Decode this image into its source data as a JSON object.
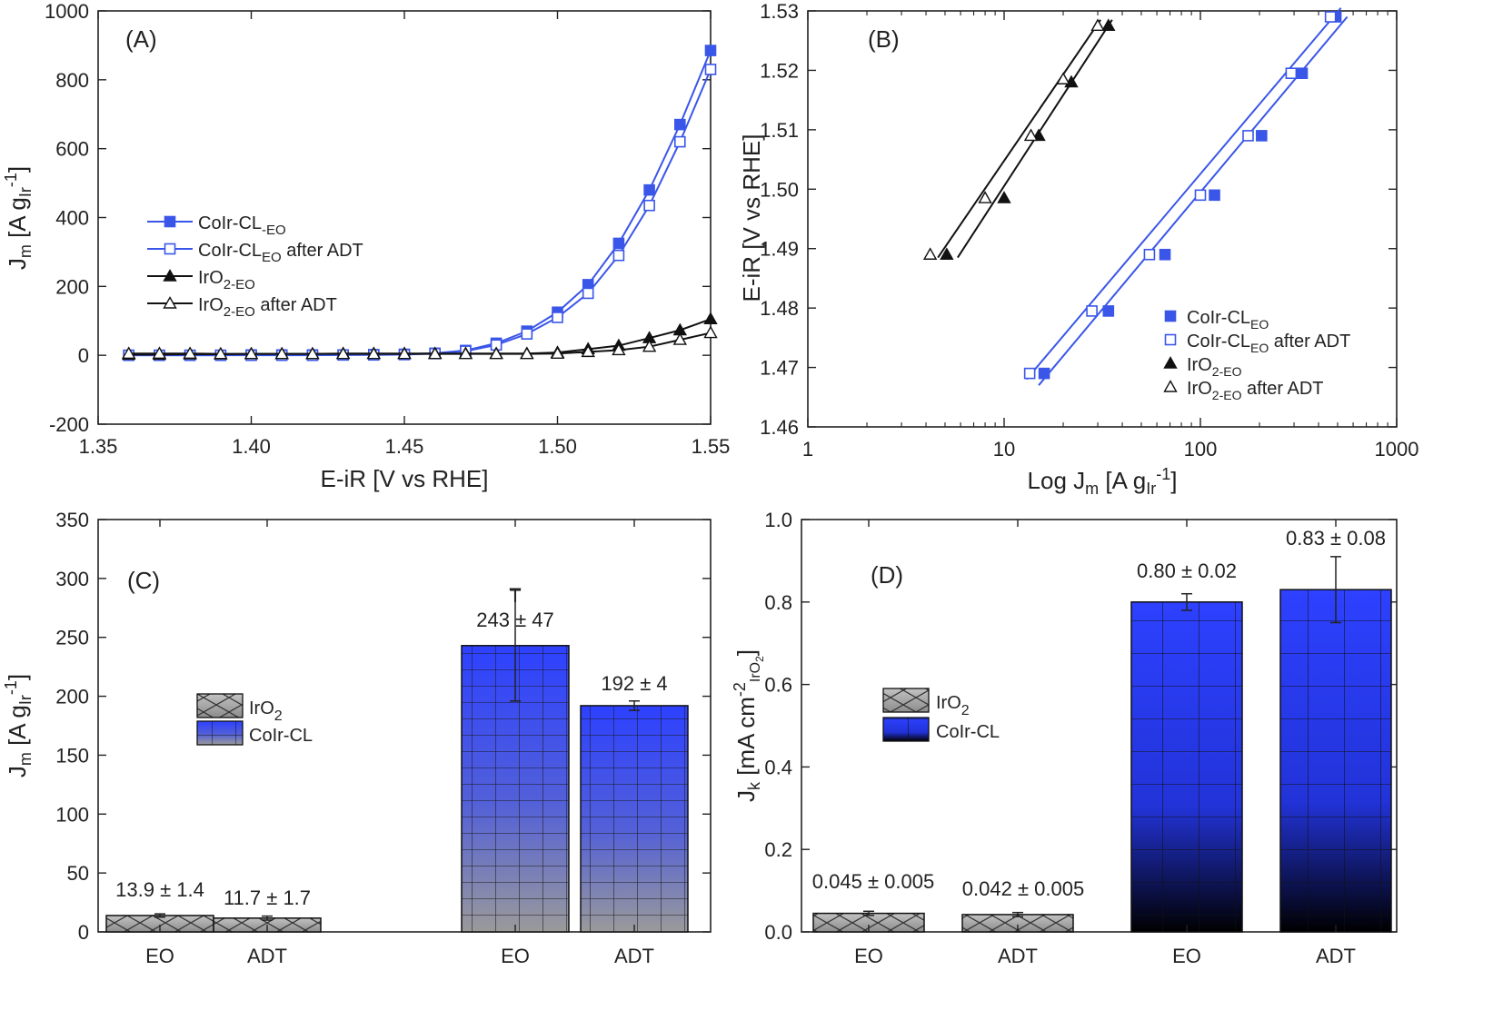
{
  "figure": {
    "panels": [
      {
        "key": "A",
        "label": "(A)"
      },
      {
        "key": "B",
        "label": "(B)"
      },
      {
        "key": "C",
        "label": "(C)"
      },
      {
        "key": "D",
        "label": "(D)"
      }
    ]
  },
  "colors": {
    "blue": "#3a56e8",
    "black": "#111111",
    "bar_gray": "#b8b8b8",
    "bar_blue_top": "#2f43ff",
    "bar_blue_bottom": "#8f9399"
  },
  "chart_data": [
    {
      "panel": "A",
      "type": "line",
      "xlabel": "E-iR [V vs RHE]",
      "ylabel": "J_m [A g_Ir^-1]",
      "xlim": [
        1.35,
        1.55
      ],
      "ylim": [
        -200,
        1000
      ],
      "xticks": [
        1.35,
        1.4,
        1.45,
        1.5,
        1.55
      ],
      "xtick_labels": [
        "1.35",
        "1.40",
        "1.45",
        "1.50",
        "1.55"
      ],
      "yticks": [
        -200,
        0,
        200,
        400,
        600,
        800,
        1000
      ],
      "ytick_labels": [
        "-200",
        "0",
        "200",
        "400",
        "600",
        "800",
        "1000"
      ],
      "legend_position": "middle-left",
      "series": [
        {
          "name": "CoIr-CL",
          "name_sub": "-EO",
          "name_suffix": "",
          "color": "blue",
          "marker": "square-filled",
          "x": [
            1.36,
            1.37,
            1.38,
            1.39,
            1.4,
            1.41,
            1.42,
            1.43,
            1.44,
            1.45,
            1.46,
            1.47,
            1.48,
            1.49,
            1.5,
            1.51,
            1.52,
            1.53,
            1.54,
            1.55
          ],
          "y": [
            0,
            0,
            0,
            0,
            1,
            1,
            1,
            1,
            2,
            3,
            6,
            14,
            35,
            70,
            125,
            205,
            325,
            480,
            670,
            885
          ]
        },
        {
          "name": "CoIr-CL",
          "name_sub": "EO",
          "name_suffix": " after ADT",
          "color": "blue",
          "marker": "square-open",
          "x": [
            1.36,
            1.37,
            1.38,
            1.39,
            1.4,
            1.41,
            1.42,
            1.43,
            1.44,
            1.45,
            1.46,
            1.47,
            1.48,
            1.49,
            1.5,
            1.51,
            1.52,
            1.53,
            1.54,
            1.55
          ],
          "y": [
            0,
            0,
            0,
            0,
            0,
            0,
            0,
            1,
            1,
            2,
            5,
            12,
            30,
            62,
            110,
            180,
            290,
            435,
            620,
            830
          ]
        },
        {
          "name": "IrO",
          "name_sub": "2-EO",
          "name_suffix": "",
          "color": "black",
          "marker": "triangle-filled",
          "x": [
            1.36,
            1.37,
            1.38,
            1.39,
            1.4,
            1.41,
            1.42,
            1.43,
            1.44,
            1.45,
            1.46,
            1.47,
            1.48,
            1.49,
            1.5,
            1.51,
            1.52,
            1.53,
            1.54,
            1.55
          ],
          "y": [
            2,
            2,
            3,
            3,
            4,
            4,
            4,
            5,
            5,
            5,
            5,
            5,
            5,
            5,
            8,
            18,
            28,
            50,
            73,
            105
          ]
        },
        {
          "name": "IrO",
          "name_sub": "2-EO",
          "name_suffix": " after ADT",
          "color": "black",
          "marker": "triangle-open",
          "x": [
            1.36,
            1.37,
            1.38,
            1.39,
            1.4,
            1.41,
            1.42,
            1.43,
            1.44,
            1.45,
            1.46,
            1.47,
            1.48,
            1.49,
            1.5,
            1.51,
            1.52,
            1.53,
            1.54,
            1.55
          ],
          "y": [
            5,
            5,
            5,
            4,
            4,
            4,
            4,
            4,
            4,
            4,
            4,
            4,
            4,
            4,
            5,
            10,
            15,
            25,
            45,
            65
          ]
        }
      ]
    },
    {
      "panel": "B",
      "type": "scatter",
      "xlabel": "Log J_m [A g_Ir^-1]",
      "ylabel": "E-iR [V vs RHE]",
      "xscale": "log",
      "xlim": [
        1,
        1000
      ],
      "ylim": [
        1.46,
        1.53
      ],
      "xticks": [
        1,
        10,
        100,
        1000
      ],
      "xtick_labels": [
        "1",
        "10",
        "100",
        "1000"
      ],
      "yticks": [
        1.46,
        1.47,
        1.48,
        1.49,
        1.5,
        1.51,
        1.52,
        1.53
      ],
      "ytick_labels": [
        "1.46",
        "1.47",
        "1.48",
        "1.49",
        "1.50",
        "1.51",
        "1.52",
        "1.53"
      ],
      "legend_position": "bottom-right",
      "series": [
        {
          "name": "CoIr-CL",
          "name_sub": "EO",
          "name_suffix": "",
          "color": "blue",
          "marker": "square-filled",
          "x": [
            16,
            34,
            66,
            118,
            205,
            330,
            490
          ],
          "y": [
            1.469,
            1.4795,
            1.489,
            1.499,
            1.509,
            1.5195,
            1.529
          ],
          "fit": [
            [
              15,
              1.467
            ],
            [
              560,
              1.529
            ]
          ]
        },
        {
          "name": "CoIr-CL",
          "name_sub": "EO",
          "name_suffix": " after ADT",
          "color": "blue",
          "marker": "square-open",
          "x": [
            13.5,
            28,
            55,
            100,
            175,
            290,
            460
          ],
          "y": [
            1.469,
            1.4795,
            1.489,
            1.499,
            1.509,
            1.5195,
            1.529
          ],
          "fit": [
            [
              13,
              1.468
            ],
            [
              520,
              1.5305
            ]
          ]
        },
        {
          "name": "IrO",
          "name_sub": "2-EO",
          "name_suffix": "",
          "color": "black",
          "marker": "triangle-filled",
          "x": [
            5.1,
            10,
            15,
            22,
            34
          ],
          "y": [
            1.489,
            1.4985,
            1.509,
            1.518,
            1.5275
          ],
          "fit": [
            [
              5.8,
              1.4885
            ],
            [
              35.5,
              1.5285
            ]
          ]
        },
        {
          "name": "IrO",
          "name_sub": "2-EO",
          "name_suffix": " after ADT",
          "color": "black",
          "marker": "triangle-open",
          "x": [
            4.2,
            8,
            13.7,
            20,
            30
          ],
          "y": [
            1.489,
            1.4985,
            1.509,
            1.5185,
            1.5275
          ],
          "fit": [
            [
              4.6,
              1.4885
            ],
            [
              31,
              1.5285
            ]
          ]
        }
      ]
    },
    {
      "panel": "C",
      "type": "bar",
      "ylabel": "J_m [A g_Ir^-1]",
      "ylim": [
        0,
        350
      ],
      "yticks": [
        0,
        50,
        100,
        150,
        200,
        250,
        300,
        350
      ],
      "ytick_labels": [
        "0",
        "50",
        "100",
        "150",
        "200",
        "250",
        "300",
        "350"
      ],
      "categories": [
        "EO",
        "ADT",
        "EO",
        "ADT"
      ],
      "values": [
        13.9,
        11.7,
        243,
        192
      ],
      "errors": [
        1.4,
        1.7,
        47,
        4
      ],
      "labels": [
        "13.9 ± 1.4",
        "11.7 ± 1.7",
        "243 ± 47",
        "192 ± 4"
      ],
      "groups": [
        "IrO2",
        "IrO2",
        "CoIr-CL",
        "CoIr-CL"
      ],
      "extra_mark": "T",
      "legend_position": "middle-left",
      "legend": [
        {
          "name": "IrO",
          "sub": "2",
          "fill": "gray"
        },
        {
          "name": "CoIr-CL",
          "sub": "",
          "fill": "blue"
        }
      ]
    },
    {
      "panel": "D",
      "type": "bar",
      "ylabel": "J_k [mA cm^-2 IrO2]",
      "ylim": [
        0,
        1.0
      ],
      "yticks": [
        0,
        0.2,
        0.4,
        0.6,
        0.8,
        1.0
      ],
      "ytick_labels": [
        "0.0",
        "0.2",
        "0.4",
        "0.6",
        "0.8",
        "1.0"
      ],
      "categories": [
        "EO",
        "ADT",
        "EO",
        "ADT"
      ],
      "values": [
        0.045,
        0.042,
        0.8,
        0.83
      ],
      "errors": [
        0.005,
        0.005,
        0.02,
        0.08
      ],
      "labels": [
        "0.045 ± 0.005",
        "0.042 ± 0.005",
        "0.80 ± 0.02",
        "0.83 ± 0.08"
      ],
      "groups": [
        "IrO2",
        "IrO2",
        "CoIr-CL",
        "CoIr-CL"
      ],
      "legend_position": "middle-left",
      "legend": [
        {
          "name": "IrO",
          "sub": "2",
          "fill": "gray"
        },
        {
          "name": "CoIr-CL",
          "sub": "",
          "fill": "blue"
        }
      ]
    }
  ]
}
